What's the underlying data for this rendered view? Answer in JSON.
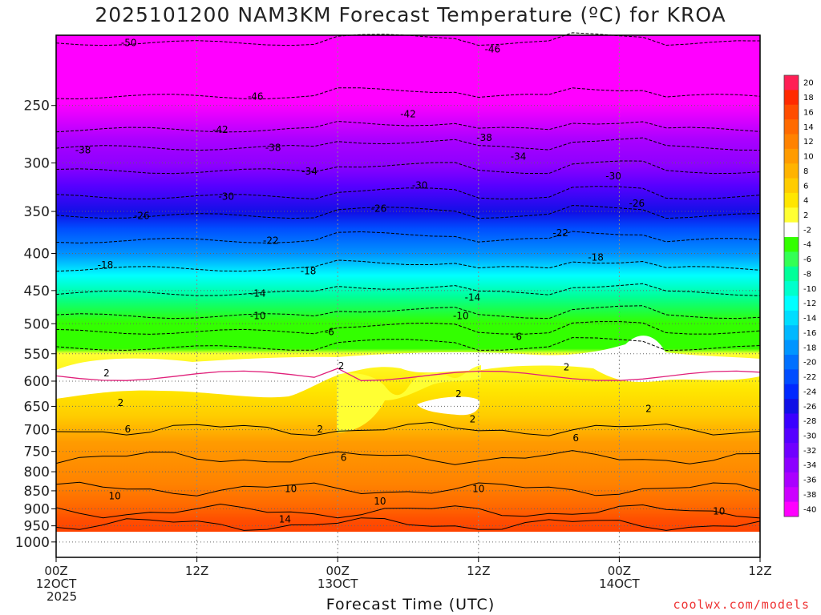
{
  "chart_data": {
    "type": "heatmap",
    "title": "2025101200 NAM3KM Forecast Temperature (ºC) for KROA",
    "xlabel": "Forecast Time (UTC)",
    "ylabel": "",
    "y_axis": {
      "scale": "log",
      "ticks": [
        250,
        300,
        350,
        400,
        450,
        500,
        550,
        600,
        650,
        700,
        750,
        800,
        850,
        900,
        950,
        1000
      ],
      "ylim": [
        200,
        1050
      ]
    },
    "x_axis": {
      "xlim_hours": [
        0,
        60
      ],
      "ticks": [
        {
          "hour": 0,
          "line1": "00Z",
          "line2": "12OCT",
          "line3": "2025"
        },
        {
          "hour": 12,
          "line1": "12Z",
          "line2": "",
          "line3": ""
        },
        {
          "hour": 24,
          "line1": "00Z",
          "line2": "13OCT",
          "line3": ""
        },
        {
          "hour": 36,
          "line1": "12Z",
          "line2": "",
          "line3": ""
        },
        {
          "hour": 48,
          "line1": "00Z",
          "line2": "14OCT",
          "line3": ""
        },
        {
          "hour": 60,
          "line1": "12Z",
          "line2": "",
          "line3": ""
        }
      ]
    },
    "grid": true,
    "colorbar": {
      "placement": "right",
      "levels": [
        20,
        18,
        16,
        14,
        12,
        10,
        8,
        6,
        4,
        2,
        -2,
        -4,
        -6,
        -8,
        -10,
        -12,
        -14,
        -16,
        -18,
        -20,
        -22,
        -24,
        -26,
        -28,
        -30,
        -32,
        -34,
        -36,
        -38,
        -40
      ],
      "colors": [
        "#ff1f55",
        "#ff2a00",
        "#ff4d00",
        "#ff6a00",
        "#ff8200",
        "#ff9b00",
        "#ffb300",
        "#ffcc00",
        "#ffe600",
        "#ffff33",
        "#ffffff",
        "#33ff00",
        "#33ff55",
        "#00ff99",
        "#00ffcc",
        "#00ffff",
        "#00ddff",
        "#00b8ff",
        "#0095ff",
        "#0070ff",
        "#004dff",
        "#0028ff",
        "#1010e6",
        "#3a00ff",
        "#5500ff",
        "#7000ff",
        "#8c00ff",
        "#aa00ff",
        "#cc00ff",
        "#ff00ff"
      ]
    },
    "isotherm_labels": [
      {
        "hour": 6.2,
        "p": 205,
        "text": "-50"
      },
      {
        "hour": 37.2,
        "p": 209,
        "text": "-46"
      },
      {
        "hour": 17,
        "p": 243,
        "text": "-46"
      },
      {
        "hour": 30,
        "p": 257,
        "text": "-42"
      },
      {
        "hour": 14,
        "p": 270,
        "text": "-42"
      },
      {
        "hour": 36.5,
        "p": 277,
        "text": "-38"
      },
      {
        "hour": 2.3,
        "p": 288,
        "text": "-38"
      },
      {
        "hour": 18.5,
        "p": 286,
        "text": "-38"
      },
      {
        "hour": 39.4,
        "p": 294,
        "text": "-34"
      },
      {
        "hour": 21.6,
        "p": 308,
        "text": "-34"
      },
      {
        "hour": 47.5,
        "p": 313,
        "text": "-30"
      },
      {
        "hour": 31,
        "p": 322,
        "text": "-30"
      },
      {
        "hour": 14.5,
        "p": 334,
        "text": "-30"
      },
      {
        "hour": 49.5,
        "p": 341,
        "text": "-26"
      },
      {
        "hour": 27.5,
        "p": 347,
        "text": "-26"
      },
      {
        "hour": 7.3,
        "p": 355,
        "text": "-26"
      },
      {
        "hour": 43,
        "p": 375,
        "text": "-22"
      },
      {
        "hour": 18.3,
        "p": 384,
        "text": "-22"
      },
      {
        "hour": 46,
        "p": 405,
        "text": "-18"
      },
      {
        "hour": 4.2,
        "p": 415,
        "text": "-18"
      },
      {
        "hour": 21.5,
        "p": 423,
        "text": "-18"
      },
      {
        "hour": 35.5,
        "p": 460,
        "text": "-14"
      },
      {
        "hour": 17.2,
        "p": 454,
        "text": "-14"
      },
      {
        "hour": 34.5,
        "p": 488,
        "text": "-10"
      },
      {
        "hour": 17.2,
        "p": 488,
        "text": "-10"
      },
      {
        "hour": 23.3,
        "p": 513,
        "text": "-6"
      },
      {
        "hour": 39.3,
        "p": 521,
        "text": "-6"
      },
      {
        "hour": 24.3,
        "p": 572,
        "text": "2"
      },
      {
        "hour": 43.5,
        "p": 574,
        "text": "2"
      },
      {
        "hour": 4.3,
        "p": 585,
        "text": "2"
      },
      {
        "hour": 34.3,
        "p": 625,
        "text": "2"
      },
      {
        "hour": 5.5,
        "p": 643,
        "text": "2"
      },
      {
        "hour": 35.5,
        "p": 677,
        "text": "2"
      },
      {
        "hour": 22.5,
        "p": 699,
        "text": "2"
      },
      {
        "hour": 50.5,
        "p": 655,
        "text": "2"
      },
      {
        "hour": 6.1,
        "p": 699,
        "text": "6"
      },
      {
        "hour": 44.3,
        "p": 719,
        "text": "6"
      },
      {
        "hour": 24.5,
        "p": 765,
        "text": "6"
      },
      {
        "hour": 20,
        "p": 845,
        "text": "10"
      },
      {
        "hour": 36,
        "p": 845,
        "text": "10"
      },
      {
        "hour": 5,
        "p": 864,
        "text": "10"
      },
      {
        "hour": 27.6,
        "p": 879,
        "text": "10"
      },
      {
        "hour": 56.5,
        "p": 907,
        "text": "10"
      },
      {
        "hour": 19.5,
        "p": 930,
        "text": "14"
      }
    ]
  }
}
